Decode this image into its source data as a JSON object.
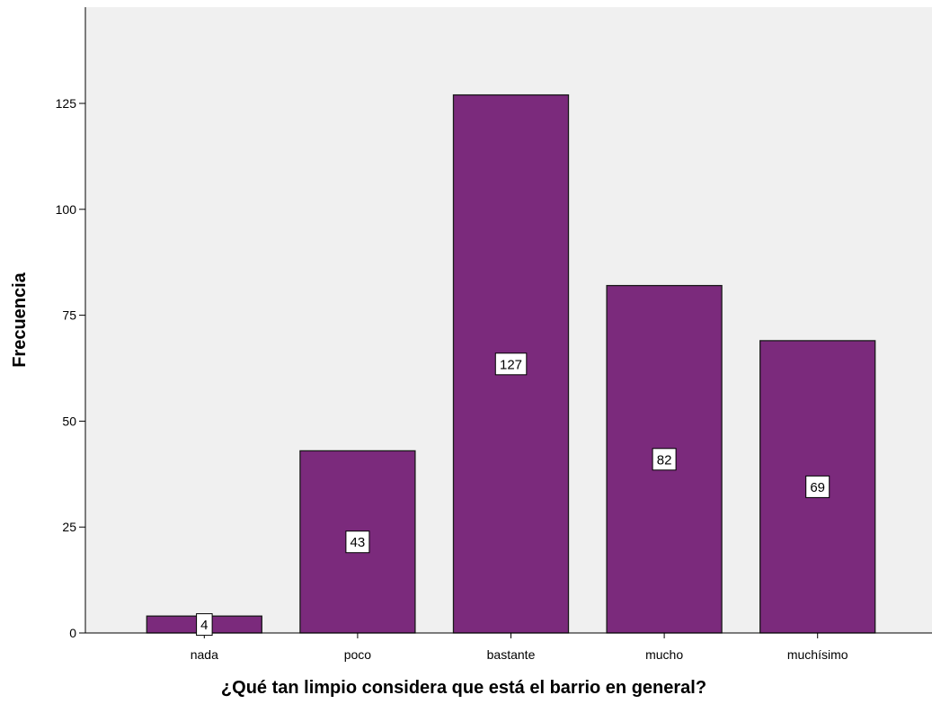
{
  "chart_data": {
    "type": "bar",
    "title": "",
    "xlabel": "¿Qué tan limpio considera que está el barrio en general?",
    "ylabel": "Frecuencia",
    "categories": [
      "nada",
      "poco",
      "bastante",
      "mucho",
      "muchísimo"
    ],
    "values": [
      4,
      43,
      127,
      82,
      69
    ],
    "data_labels": [
      "4",
      "43",
      "127",
      "82",
      "69"
    ],
    "yticks": [
      0,
      25,
      50,
      75,
      100,
      125
    ],
    "ytick_labels": [
      "0",
      "25",
      "50",
      "75",
      "100",
      "125"
    ],
    "ylim": [
      0,
      140
    ],
    "grid": false,
    "legend": "none",
    "colors": {
      "bar_fill": "#7B2A7C",
      "bar_stroke": "#1a1a1a",
      "plot_background": "#F0F0F0",
      "label_background": "#FFFFFF"
    }
  }
}
